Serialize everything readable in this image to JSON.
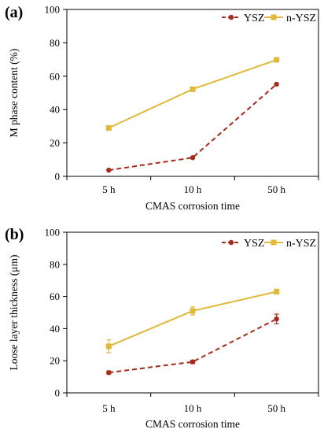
{
  "chart_data": [
    {
      "type": "line",
      "panel_label": "(a)",
      "categories": [
        "5 h",
        "10 h",
        "50 h"
      ],
      "xlabel": "CMAS corrosion time",
      "ylabel": "M phase content (%)",
      "ylim": [
        0,
        100
      ],
      "yticks": [
        "0",
        "20",
        "40",
        "60",
        "80",
        "100"
      ],
      "legend_position": "top-right",
      "grid": false,
      "series": [
        {
          "name": "YSZ",
          "values": [
            3.7,
            11.2,
            55.2
          ],
          "color": "#a52a1a",
          "style": "dashed",
          "marker": "circle"
        },
        {
          "name": "n-YSZ",
          "values": [
            29,
            52.2,
            69.8
          ],
          "color": "#e0b83a",
          "style": "solid",
          "marker": "square"
        }
      ]
    },
    {
      "type": "line",
      "panel_label": "(b)",
      "categories": [
        "5 h",
        "10 h",
        "50 h"
      ],
      "xlabel": "CMAS corrosion time",
      "ylabel": "Loose layer thickness (μm)",
      "ylim": [
        0,
        100
      ],
      "yticks": [
        "0",
        "20",
        "40",
        "60",
        "80",
        "100"
      ],
      "legend_position": "top-right",
      "grid": false,
      "series": [
        {
          "name": "YSZ",
          "values": [
            12.6,
            19.3,
            46
          ],
          "errors": [
            1,
            1,
            3
          ],
          "color": "#a52a1a",
          "style": "dashed",
          "marker": "circle"
        },
        {
          "name": "n-YSZ",
          "values": [
            29,
            51,
            63
          ],
          "errors": [
            4,
            2.5,
            1.5
          ],
          "color": "#e0b83a",
          "style": "solid",
          "marker": "square"
        }
      ]
    }
  ]
}
